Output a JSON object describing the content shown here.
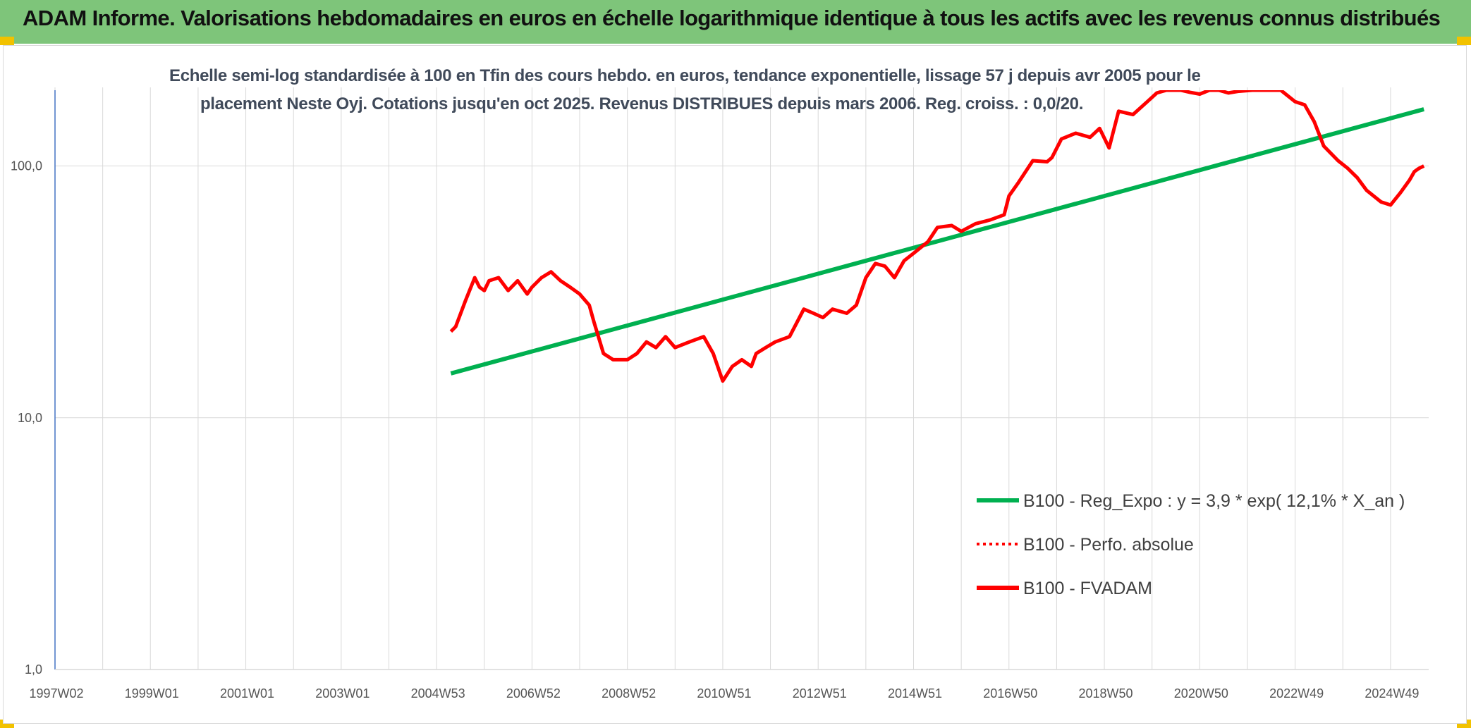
{
  "header": {
    "title": "ADAM Informe. Valorisations hebdomadaires en euros en échelle logarithmique identique à tous les actifs avec les revenus connus distribués"
  },
  "colors": {
    "header_bg": "#7ec57a",
    "corner_accent": "#f2c200",
    "trend": "#00b050",
    "fvadam": "#ff0000",
    "perfo": "#ff0000",
    "grid": "#d9d9d9",
    "axis": "#4472c4"
  },
  "chart_data": {
    "type": "line",
    "title_lines": [
      "Echelle semi-log standardisée à 100 en Tfin des cours hebdo. en euros, tendance exponentielle, lissage 57 j depuis avr 2005 pour le",
      "placement Neste Oyj. Cotations jusqu'en oct 2025. Revenus DISTRIBUES depuis mars 2006. Reg. croiss. : 0,0/20."
    ],
    "y_scale": "log",
    "ylim": [
      1,
      200
    ],
    "xlim": [
      1997.0,
      2025.8
    ],
    "grid": true,
    "legend_position": "bottom-right",
    "y_ticks": [
      {
        "value": 1,
        "label": "1,0"
      },
      {
        "value": 10,
        "label": "10,0"
      },
      {
        "value": 100,
        "label": "100,0"
      }
    ],
    "x_ticks": [
      {
        "value": 1997.0,
        "label": "1997W02"
      },
      {
        "value": 1999.0,
        "label": "1999W01"
      },
      {
        "value": 2001.0,
        "label": "2001W01"
      },
      {
        "value": 2003.0,
        "label": "2003W01"
      },
      {
        "value": 2005.0,
        "label": "2004W53"
      },
      {
        "value": 2007.0,
        "label": "2006W52"
      },
      {
        "value": 2009.0,
        "label": "2008W52"
      },
      {
        "value": 2011.0,
        "label": "2010W51"
      },
      {
        "value": 2013.0,
        "label": "2012W51"
      },
      {
        "value": 2015.0,
        "label": "2014W51"
      },
      {
        "value": 2017.0,
        "label": "2016W50"
      },
      {
        "value": 2019.0,
        "label": "2018W50"
      },
      {
        "value": 2021.0,
        "label": "2020W50"
      },
      {
        "value": 2023.0,
        "label": "2022W49"
      },
      {
        "value": 2025.0,
        "label": "2024W49"
      }
    ],
    "series": [
      {
        "name": "B100 - Reg_Expo : y = 3,9 * exp( 12,1% *  X_an )",
        "style": "solid",
        "color": "#00b050",
        "x": [
          2005.3,
          2025.7
        ],
        "y": [
          15,
          168
        ]
      },
      {
        "name": "B100 - Perfo. absolue",
        "style": "dotted",
        "color": "#ff0000",
        "x": [],
        "y": []
      },
      {
        "name": "B100 - FVADAM",
        "style": "solid",
        "color": "#ff0000",
        "x": [
          2005.3,
          2005.4,
          2005.6,
          2005.8,
          2005.9,
          2006.0,
          2006.1,
          2006.3,
          2006.5,
          2006.7,
          2006.9,
          2007.0,
          2007.2,
          2007.4,
          2007.6,
          2007.8,
          2008.0,
          2008.2,
          2008.3,
          2008.5,
          2008.7,
          2008.8,
          2009.0,
          2009.2,
          2009.4,
          2009.6,
          2009.8,
          2010.0,
          2010.3,
          2010.6,
          2010.8,
          2011.0,
          2011.2,
          2011.4,
          2011.6,
          2011.7,
          2011.9,
          2012.1,
          2012.4,
          2012.7,
          2012.9,
          2013.1,
          2013.3,
          2013.6,
          2013.8,
          2014.0,
          2014.2,
          2014.4,
          2014.6,
          2014.8,
          2015.0,
          2015.3,
          2015.5,
          2015.8,
          2016.0,
          2016.3,
          2016.6,
          2016.9,
          2017.0,
          2017.2,
          2017.5,
          2017.8,
          2017.9,
          2018.1,
          2018.4,
          2018.7,
          2018.9,
          2019.1,
          2019.3,
          2019.6,
          2019.9,
          2020.1,
          2020.3,
          2020.4,
          2020.6,
          2020.8,
          2021.0,
          2021.2,
          2021.4,
          2021.6,
          2021.8,
          2022.1,
          2022.4,
          2022.7,
          2023.0,
          2023.2,
          2023.4,
          2023.6,
          2023.9,
          2024.1,
          2024.3,
          2024.5,
          2024.8,
          2025.0,
          2025.2,
          2025.4,
          2025.5,
          2025.6,
          2025.7
        ],
        "y": [
          22,
          23,
          29,
          36,
          33,
          32,
          35,
          36,
          32,
          35,
          31,
          33,
          36,
          38,
          35,
          33,
          31,
          28,
          24,
          18,
          17,
          17,
          17,
          18,
          20,
          19,
          21,
          19,
          20,
          21,
          18,
          14,
          16,
          17,
          16,
          18,
          19,
          20,
          21,
          27,
          26,
          25,
          27,
          26,
          28,
          36,
          41,
          40,
          36,
          42,
          45,
          50,
          57,
          58,
          55,
          59,
          61,
          64,
          76,
          86,
          105,
          104,
          108,
          128,
          135,
          130,
          141,
          118,
          165,
          160,
          180,
          195,
          200,
          200,
          200,
          196,
          193,
          200,
          200,
          195,
          198,
          200,
          200,
          200,
          180,
          175,
          150,
          120,
          105,
          98,
          90,
          80,
          72,
          70,
          78,
          88,
          95,
          98,
          100
        ]
      }
    ]
  },
  "legend": [
    {
      "label": "B100 - Reg_Expo : y = 3,9 * exp( 12,1% *  X_an )",
      "style": "solid",
      "color": "#00b050"
    },
    {
      "label": "B100 - Perfo. absolue",
      "style": "dotted",
      "color": "#ff0000"
    },
    {
      "label": "B100 - FVADAM",
      "style": "solid",
      "color": "#ff0000"
    }
  ]
}
